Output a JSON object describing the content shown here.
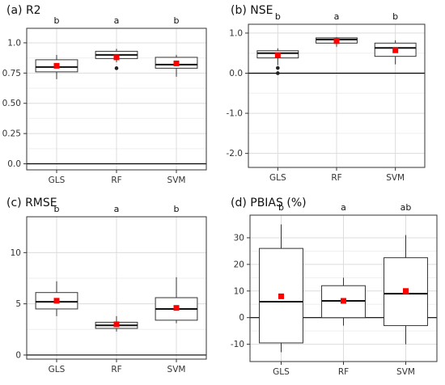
{
  "chart_data": [
    {
      "type": "boxplot",
      "title": "(a) R2",
      "categories": [
        "GLS",
        "RF",
        "SVM"
      ],
      "ylim": [
        -0.05,
        1.12
      ],
      "yticks": [
        0.0,
        0.25,
        0.5,
        0.75,
        1.0
      ],
      "ytick_labels": [
        "0.0",
        "0.25",
        "0.50",
        "0.75",
        "1.0"
      ],
      "reference_line": 0,
      "letters": [
        "b",
        "a",
        "b"
      ],
      "boxes": [
        {
          "min": 0.7,
          "q1": 0.76,
          "median": 0.8,
          "q3": 0.86,
          "max": 0.9,
          "mean": 0.81,
          "outliers": []
        },
        {
          "min": 0.84,
          "q1": 0.87,
          "median": 0.9,
          "q3": 0.93,
          "max": 0.95,
          "mean": 0.88,
          "outliers": [
            0.79
          ]
        },
        {
          "min": 0.72,
          "q1": 0.79,
          "median": 0.82,
          "q3": 0.88,
          "max": 0.9,
          "mean": 0.83,
          "outliers": []
        }
      ],
      "grid": true
    },
    {
      "type": "boxplot",
      "title": "(b) NSE",
      "categories": [
        "GLS",
        "RF",
        "SVM"
      ],
      "ylim": [
        -2.35,
        1.22
      ],
      "yticks": [
        -2.0,
        -1.0,
        0.0,
        1.0
      ],
      "ytick_labels": [
        "-2.0",
        "-1.0",
        "0.0",
        "1.0"
      ],
      "reference_line": 0,
      "letters": [
        "b",
        "a",
        "b"
      ],
      "boxes": [
        {
          "min": 0.2,
          "q1": 0.38,
          "median": 0.5,
          "q3": 0.56,
          "max": 0.62,
          "mean": 0.45,
          "outliers": [
            0.13,
            0.0
          ]
        },
        {
          "min": 0.66,
          "q1": 0.75,
          "median": 0.84,
          "q3": 0.88,
          "max": 0.9,
          "mean": 0.8,
          "outliers": []
        },
        {
          "min": 0.22,
          "q1": 0.42,
          "median": 0.63,
          "q3": 0.75,
          "max": 0.82,
          "mean": 0.57,
          "outliers": []
        }
      ],
      "grid": true
    },
    {
      "type": "boxplot",
      "title": "(c) RMSE",
      "categories": [
        "GLS",
        "RF",
        "SVM"
      ],
      "ylim": [
        -0.4,
        13.5
      ],
      "yticks": [
        0,
        5,
        10
      ],
      "ytick_labels": [
        "0",
        "5",
        "10"
      ],
      "reference_line": 0,
      "letters": [
        "b",
        "a",
        "b"
      ],
      "boxes": [
        {
          "min": 3.8,
          "q1": 4.5,
          "median": 5.2,
          "q3": 6.1,
          "max": 7.2,
          "mean": 5.3,
          "outliers": []
        },
        {
          "min": 2.3,
          "q1": 2.6,
          "median": 2.9,
          "q3": 3.2,
          "max": 3.8,
          "mean": 3.0,
          "outliers": []
        },
        {
          "min": 3.1,
          "q1": 3.4,
          "median": 4.5,
          "q3": 5.6,
          "max": 7.6,
          "mean": 4.6,
          "outliers": []
        }
      ],
      "grid": true
    },
    {
      "type": "boxplot",
      "title": "(d) PBIAS (%)",
      "categories": [
        "GLS",
        "RF",
        "SVM"
      ],
      "ylim": [
        -16.5,
        38.5
      ],
      "yticks": [
        -10,
        0,
        10,
        20,
        30
      ],
      "ytick_labels": [
        "-10",
        "0",
        "10",
        "20",
        "30"
      ],
      "reference_line": 0,
      "letters": [
        "b",
        "a",
        "ab"
      ],
      "boxes": [
        {
          "min": -13.0,
          "q1": -9.5,
          "median": 6.0,
          "q3": 26.0,
          "max": 35.0,
          "mean": 8.0,
          "outliers": []
        },
        {
          "min": -3.0,
          "q1": 0.0,
          "median": 6.3,
          "q3": 12.0,
          "max": 15.0,
          "mean": 6.3,
          "outliers": []
        },
        {
          "min": -10.0,
          "q1": -3.0,
          "median": 9.0,
          "q3": 22.5,
          "max": 31.0,
          "mean": 10.0,
          "outliers": []
        }
      ],
      "grid": true
    }
  ],
  "colors": {
    "box_fill": "#ffffff",
    "box_stroke": "#333333",
    "mean_marker": "#ff0000",
    "outlier": "#222222",
    "grid_major": "#dcdcdc",
    "grid_minor": "#efefef",
    "axis": "#333333",
    "reference_line": "#000000"
  },
  "ui": {
    "panel_a_title": "(a) R2",
    "panel_b_title": "(b) NSE",
    "panel_c_title": "(c) RMSE",
    "panel_d_title": "(d) PBIAS (%)"
  }
}
